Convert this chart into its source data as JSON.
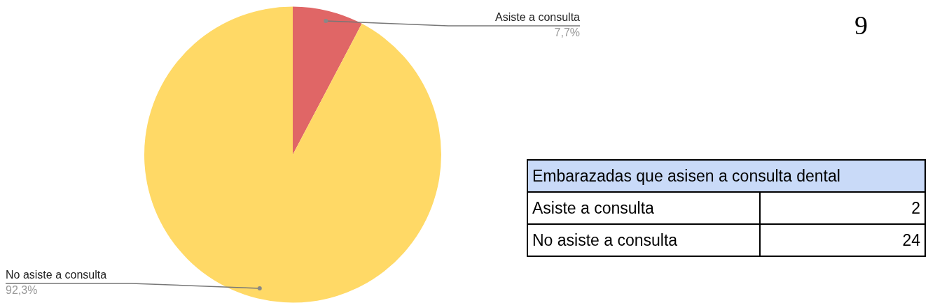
{
  "chart_data": [
    {
      "type": "pie",
      "categories": [
        "Asiste a consulta",
        "No asiste a consulta"
      ],
      "values": [
        7.7,
        92.3
      ],
      "colors": [
        "#e06666",
        "#ffd966"
      ],
      "value_labels": [
        "7,7%",
        "92,3%"
      ],
      "annotations": [
        "9"
      ]
    },
    {
      "type": "other",
      "title": "Embarazadas que asisen a consulta dental",
      "categories": [
        "Asiste a consulta",
        "No asiste a consulta"
      ],
      "values": [
        2,
        24
      ],
      "data_labels": true
    }
  ]
}
